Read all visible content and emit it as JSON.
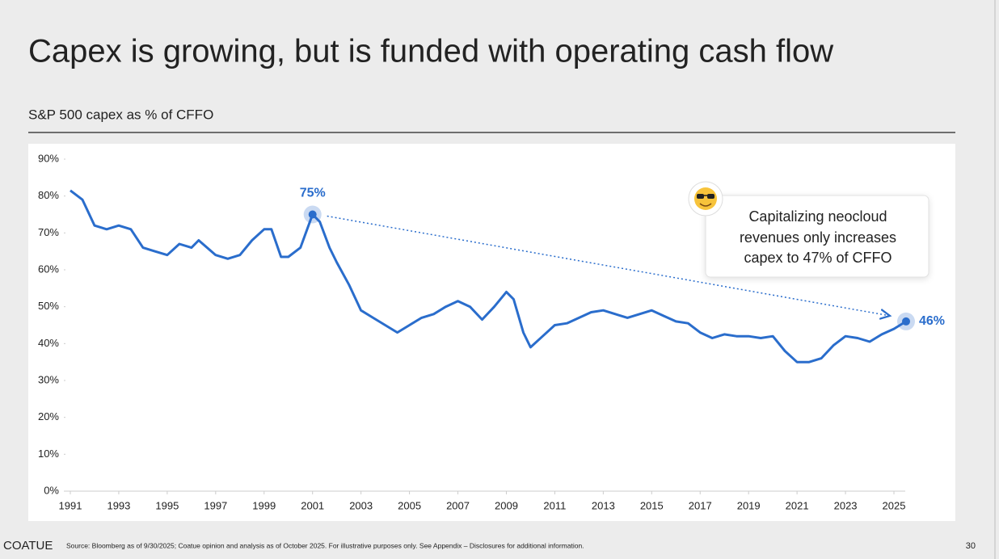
{
  "chart_data": {
    "type": "line",
    "title": "Capex is growing, but is funded with operating cash flow",
    "subtitle": "S&P 500 capex as % of CFFO",
    "x": [
      1991,
      1991.5,
      1992,
      1992.5,
      1993,
      1993.5,
      1994,
      1994.5,
      1995,
      1995.5,
      1996,
      1996.3,
      1997,
      1997.5,
      1998,
      1998.5,
      1999,
      1999.3,
      1999.7,
      2000,
      2000.5,
      2001,
      2001.3,
      2001.7,
      2002,
      2002.5,
      2003,
      2003.5,
      2004,
      2004.5,
      2005,
      2005.5,
      2006,
      2006.5,
      2007,
      2007.5,
      2008,
      2008.5,
      2009,
      2009.3,
      2009.7,
      2010,
      2010.5,
      2011,
      2011.5,
      2012,
      2012.5,
      2013,
      2013.5,
      2014,
      2014.5,
      2015,
      2015.5,
      2016,
      2016.5,
      2017,
      2017.5,
      2018,
      2018.5,
      2019,
      2019.5,
      2020,
      2020.5,
      2021,
      2021.5,
      2022,
      2022.5,
      2023,
      2023.5,
      2024,
      2024.5,
      2025,
      2025.5
    ],
    "values": [
      81.5,
      79,
      72,
      71,
      72,
      71,
      66,
      65,
      64,
      67,
      66,
      68,
      64,
      63,
      64,
      68,
      71,
      71,
      63.5,
      63.5,
      66,
      75,
      73,
      66,
      62,
      56,
      49,
      47,
      45,
      43,
      45,
      47,
      48,
      50,
      51.5,
      50,
      46.5,
      50,
      54,
      52,
      43,
      39,
      42,
      45,
      45.5,
      47,
      48.5,
      49,
      48,
      47,
      48,
      49,
      47.5,
      46,
      45.5,
      43,
      41.5,
      42.5,
      42,
      42,
      41.5,
      42,
      38,
      35,
      35,
      36,
      39.5,
      42,
      41.5,
      40.5,
      42.5,
      44,
      46
    ],
    "color": "#2a6dcc",
    "xlim": [
      1990.8,
      2025.6
    ],
    "xticks": [
      1991,
      1993,
      1995,
      1997,
      1999,
      2001,
      2003,
      2005,
      2007,
      2009,
      2011,
      2013,
      2015,
      2017,
      2019,
      2021,
      2023,
      2025
    ],
    "ylim": [
      0,
      90
    ],
    "yticks": [
      {
        "value": 0,
        "label": "0%"
      },
      {
        "value": 10,
        "label": "10%"
      },
      {
        "value": 20,
        "label": "20%"
      },
      {
        "value": 30,
        "label": "30%"
      },
      {
        "value": 40,
        "label": "40%"
      },
      {
        "value": 50,
        "label": "50%"
      },
      {
        "value": 60,
        "label": "60%"
      },
      {
        "value": 70,
        "label": "70%"
      },
      {
        "value": 80,
        "label": "80%"
      },
      {
        "value": 90,
        "label": "90%"
      }
    ],
    "annotations": [
      {
        "x": 2001,
        "y": 75,
        "label": "75%"
      },
      {
        "x": 2025.5,
        "y": 46,
        "label": "46%"
      }
    ],
    "callout": [
      "Capitalizing neocloud",
      "revenues only increases",
      "capex to 47% of CFFO"
    ]
  },
  "footer": {
    "brand": "COATUE",
    "source": "Source: Bloomberg as of 9/30/2025; Coatue opinion and analysis as of October 2025. For illustrative purposes only. See Appendix – Disclosures for additional information.",
    "page": "30"
  }
}
